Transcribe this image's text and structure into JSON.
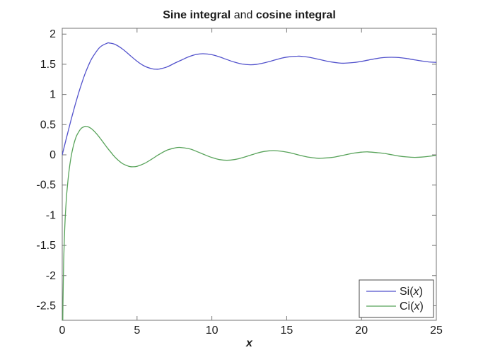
{
  "chart_data": {
    "type": "line",
    "title": {
      "part1": "Sine integral",
      "part2": " and ",
      "part3": "cosine integral"
    },
    "xlabel": "x",
    "xlim": [
      0,
      25
    ],
    "ylim": [
      -2.74,
      2.096
    ],
    "grid": false,
    "axis_color": "#757575",
    "text_color": "#1c1c1c",
    "xticks": {
      "values": [
        0,
        5,
        10,
        15,
        20,
        25
      ],
      "labels": [
        "0",
        "5",
        "10",
        "15",
        "20",
        "25"
      ]
    },
    "yticks": {
      "values": [
        2,
        1.5,
        1,
        0.5,
        0,
        -0.5,
        -1,
        -1.5,
        -2,
        -2.5
      ],
      "labels": [
        "2",
        "1.5",
        "1",
        "0.5",
        "0",
        "-0.5",
        "-1",
        "-1.5",
        "-2",
        "-2.5"
      ]
    },
    "legend": {
      "position": "bottom-right",
      "border_color": "#4a4a4a",
      "entries": [
        {
          "label": "Si(x)",
          "color": "#5252cc"
        },
        {
          "label": "Ci(x)",
          "color": "#58a35a"
        }
      ]
    },
    "series": [
      {
        "name": "Si(x)",
        "color": "#5252cc",
        "x": [
          0,
          0.25,
          0.5,
          0.75,
          1,
          1.25,
          1.5,
          1.75,
          2,
          2.5,
          3,
          3.14,
          3.5,
          4,
          4.5,
          5,
          5.5,
          6,
          6.28,
          6.5,
          7,
          7.5,
          8,
          8.5,
          9,
          9.42,
          10,
          10.5,
          11,
          11.5,
          12,
          12.57,
          13,
          13.5,
          14,
          14.5,
          15,
          15.71,
          16,
          16.5,
          17,
          17.5,
          18,
          18.5,
          18.85,
          19.5,
          20,
          20.5,
          21,
          21.5,
          21.99,
          22.5,
          23,
          23.5,
          24,
          24.5,
          25
        ],
        "y": [
          0,
          0.249,
          0.493,
          0.727,
          0.946,
          1.146,
          1.325,
          1.478,
          1.605,
          1.778,
          1.849,
          1.852,
          1.833,
          1.758,
          1.654,
          1.55,
          1.469,
          1.425,
          1.418,
          1.422,
          1.455,
          1.516,
          1.574,
          1.629,
          1.665,
          1.675,
          1.658,
          1.623,
          1.578,
          1.536,
          1.505,
          1.492,
          1.499,
          1.523,
          1.556,
          1.591,
          1.618,
          1.634,
          1.631,
          1.616,
          1.59,
          1.562,
          1.537,
          1.521,
          1.518,
          1.529,
          1.548,
          1.572,
          1.595,
          1.611,
          1.616,
          1.611,
          1.596,
          1.575,
          1.555,
          1.539,
          1.532
        ]
      },
      {
        "name": "Ci(x)",
        "color": "#58a35a",
        "x": [
          0.03,
          0.05,
          0.1,
          0.15,
          0.2,
          0.25,
          0.3,
          0.4,
          0.5,
          0.6,
          0.7,
          0.8,
          0.9,
          1,
          1.25,
          1.5,
          1.57,
          1.75,
          2,
          2.25,
          2.5,
          2.75,
          3,
          3.25,
          3.5,
          3.75,
          4,
          4.25,
          4.5,
          4.71,
          5,
          5.5,
          6,
          6.5,
          7,
          7.5,
          7.85,
          8.5,
          9,
          9.5,
          10,
          10.5,
          11,
          11.5,
          12,
          12.5,
          13,
          13.5,
          14.14,
          15,
          15.5,
          16,
          16.5,
          17,
          17.28,
          18,
          18.5,
          19,
          19.5,
          20,
          20.42,
          21,
          21.5,
          22,
          22.5,
          23,
          23.56,
          24,
          24.5,
          25
        ],
        "y": [
          -2.93,
          -2.419,
          -1.728,
          -1.326,
          -1.042,
          -0.825,
          -0.649,
          -0.379,
          -0.178,
          -0.022,
          0.1,
          0.198,
          0.276,
          0.337,
          0.434,
          0.47,
          0.472,
          0.462,
          0.423,
          0.361,
          0.286,
          0.203,
          0.12,
          0.043,
          -0.032,
          -0.091,
          -0.141,
          -0.171,
          -0.193,
          -0.198,
          -0.19,
          -0.142,
          -0.068,
          0.011,
          0.077,
          0.112,
          0.123,
          0.1,
          0.055,
          0.003,
          -0.045,
          -0.078,
          -0.09,
          -0.079,
          -0.05,
          -0.012,
          0.027,
          0.056,
          0.07,
          0.046,
          0.017,
          -0.014,
          -0.04,
          -0.055,
          -0.057,
          -0.043,
          -0.021,
          0.005,
          0.029,
          0.044,
          0.049,
          0.037,
          0.024,
          0.002,
          -0.02,
          -0.034,
          -0.042,
          -0.038,
          -0.025,
          -0.007
        ]
      }
    ]
  }
}
